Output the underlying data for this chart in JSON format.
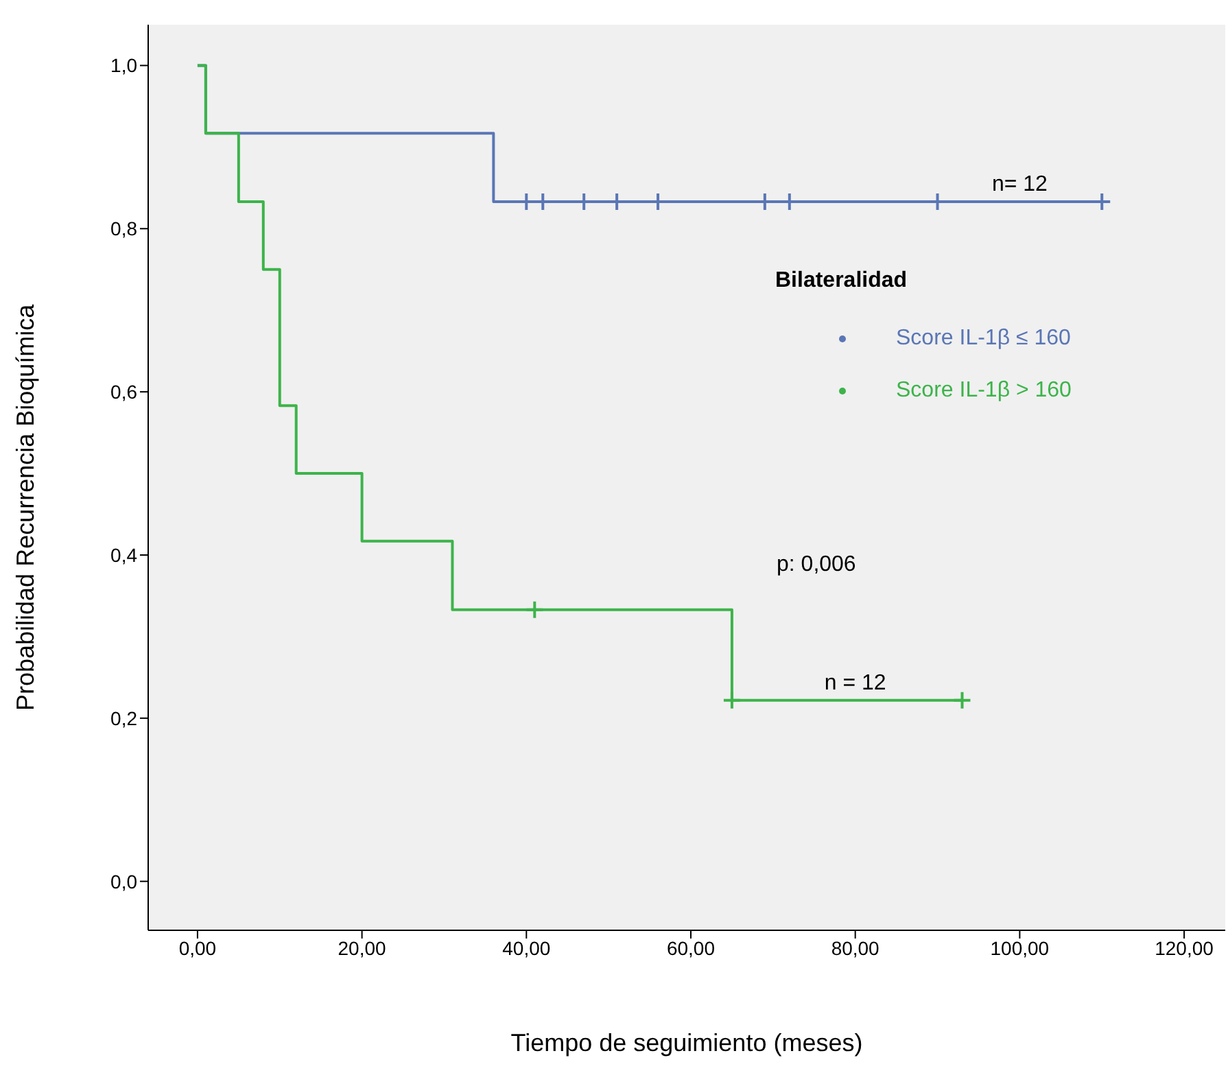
{
  "chart_data": {
    "type": "step",
    "xlabel": "Tiempo de seguimiento (meses)",
    "ylabel": "Probabilidad Recurrencia Bioquímica",
    "legend_title": "Bilateralidad",
    "legend": "right",
    "marker": "none",
    "grid": false,
    "xlim": [
      -6,
      125
    ],
    "ylim": [
      -0.06,
      1.05
    ],
    "xticks": [
      {
        "value": 0,
        "label": "0,00"
      },
      {
        "value": 20,
        "label": "20,00"
      },
      {
        "value": 40,
        "label": "40,00"
      },
      {
        "value": 60,
        "label": "60,00"
      },
      {
        "value": 80,
        "label": "80,00"
      },
      {
        "value": 100,
        "label": "100,00"
      },
      {
        "value": 120,
        "label": "120,00"
      }
    ],
    "yticks": [
      {
        "value": 0,
        "label": "0,0"
      },
      {
        "value": 0.2,
        "label": "0,2"
      },
      {
        "value": 0.4,
        "label": "0,4"
      },
      {
        "value": 0.6,
        "label": "0,6"
      },
      {
        "value": 0.8,
        "label": "0,8"
      },
      {
        "value": 1,
        "label": "1,0"
      }
    ],
    "series": [
      {
        "name": "Score IL-1β ≤ 160",
        "color": "#5a76b5",
        "x": [
          0,
          1,
          36,
          110
        ],
        "values": [
          1,
          0.917,
          0.833,
          0.833
        ]
      },
      {
        "name": "Score IL-1β > 160",
        "color": "#3cb44a",
        "x": [
          0,
          1,
          5,
          8,
          10,
          12,
          20,
          31,
          65,
          93
        ],
        "values": [
          1,
          0.917,
          0.833,
          0.75,
          0.583,
          0.5,
          0.417,
          0.333,
          0.222,
          0.222
        ]
      },
      {
        "type": "scatter",
        "marker": "cross",
        "color": "#5a76b5",
        "x": [
          40,
          42,
          47,
          51,
          56,
          69,
          72,
          90,
          110
        ],
        "values": [
          0.833,
          0.833,
          0.833,
          0.833,
          0.833,
          0.833,
          0.833,
          0.833,
          0.833
        ]
      },
      {
        "type": "scatter",
        "marker": "cross",
        "color": "#3cb44a",
        "x": [
          41,
          65,
          93
        ],
        "values": [
          0.333,
          0.222,
          0.222
        ]
      }
    ],
    "annotations": [
      {
        "text": "n= 12",
        "x": 100,
        "y": 0.833
      },
      {
        "text": "n = 12",
        "x": 80,
        "y": 0.222
      },
      "p: 0,006"
    ]
  }
}
